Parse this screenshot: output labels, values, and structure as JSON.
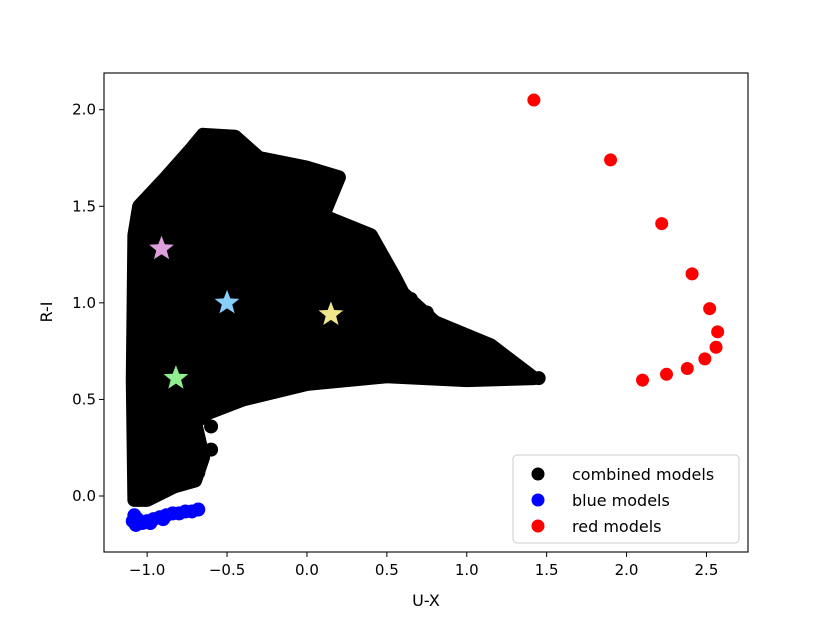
{
  "chart_data": {
    "type": "scatter",
    "title": "",
    "xlabel": "U-X",
    "ylabel": "R-I",
    "xlim": [
      -1.27,
      2.76
    ],
    "ylim": [
      -0.29,
      2.19
    ],
    "xticks": [
      -1.0,
      -0.5,
      0.0,
      0.5,
      1.0,
      1.5,
      2.0,
      2.5
    ],
    "xtick_labels": [
      "−1.0",
      "−0.5",
      "0.0",
      "0.5",
      "1.0",
      "1.5",
      "2.0",
      "2.5"
    ],
    "yticks": [
      0.0,
      0.5,
      1.0,
      1.5,
      2.0
    ],
    "ytick_labels": [
      "0.0",
      "0.5",
      "1.0",
      "1.5",
      "2.0"
    ],
    "grid": false,
    "legend_position": "lower-right",
    "series": [
      {
        "name": "combined models",
        "color": "#000000",
        "marker": "circle",
        "region_boundary": [
          [
            -1.08,
            -0.02
          ],
          [
            -1.09,
            0.6
          ],
          [
            -1.08,
            1.35
          ],
          [
            -1.05,
            1.5
          ],
          [
            -0.88,
            1.65
          ],
          [
            -0.72,
            1.8
          ],
          [
            -0.65,
            1.87
          ],
          [
            -0.45,
            1.86
          ],
          [
            -0.3,
            1.75
          ],
          [
            0.0,
            1.7
          ],
          [
            0.2,
            1.65
          ],
          [
            0.1,
            1.45
          ],
          [
            0.4,
            1.35
          ],
          [
            0.55,
            1.13
          ],
          [
            0.6,
            1.05
          ],
          [
            0.8,
            0.9
          ],
          [
            1.15,
            0.78
          ],
          [
            1.42,
            0.61
          ],
          [
            1.0,
            0.6
          ],
          [
            0.5,
            0.62
          ],
          [
            0.0,
            0.58
          ],
          [
            -0.4,
            0.5
          ],
          [
            -0.62,
            0.43
          ],
          [
            -0.7,
            0.38
          ],
          [
            -0.65,
            0.2
          ],
          [
            -0.7,
            0.08
          ],
          [
            -0.83,
            0.05
          ],
          [
            -1.0,
            -0.02
          ]
        ],
        "fringe_points": [
          [
            0.65,
            1.02
          ],
          [
            0.75,
            0.95
          ],
          [
            0.86,
            0.86
          ],
          [
            1.0,
            0.75
          ],
          [
            1.05,
            0.74
          ],
          [
            1.2,
            0.68
          ],
          [
            1.3,
            0.65
          ],
          [
            1.35,
            0.62
          ],
          [
            1.45,
            0.61
          ],
          [
            0.9,
            0.68
          ],
          [
            0.6,
            0.7
          ],
          [
            0.3,
            0.75
          ],
          [
            0.55,
            1.1
          ],
          [
            0.35,
            1.36
          ],
          [
            0.15,
            1.63
          ],
          [
            -0.05,
            1.67
          ],
          [
            -0.2,
            1.72
          ],
          [
            -0.6,
            0.36
          ],
          [
            -0.6,
            0.24
          ],
          [
            -0.68,
            0.12
          ]
        ]
      },
      {
        "name": "blue models",
        "color": "#0000ff",
        "marker": "circle",
        "points": [
          [
            -1.08,
            -0.1
          ],
          [
            -1.09,
            -0.13
          ],
          [
            -1.07,
            -0.15
          ],
          [
            -1.03,
            -0.14
          ],
          [
            -1.0,
            -0.13
          ],
          [
            -0.96,
            -0.12
          ],
          [
            -0.92,
            -0.11
          ],
          [
            -0.88,
            -0.1
          ],
          [
            -0.84,
            -0.09
          ],
          [
            -0.8,
            -0.09
          ],
          [
            -0.76,
            -0.08
          ],
          [
            -0.72,
            -0.08
          ],
          [
            -0.68,
            -0.07
          ],
          [
            -1.06,
            -0.12
          ],
          [
            -0.98,
            -0.14
          ],
          [
            -0.9,
            -0.12
          ]
        ]
      },
      {
        "name": "red models",
        "color": "#ff0000",
        "marker": "circle",
        "points": [
          [
            1.42,
            2.05
          ],
          [
            1.9,
            1.74
          ],
          [
            2.22,
            1.41
          ],
          [
            2.41,
            1.15
          ],
          [
            2.52,
            0.97
          ],
          [
            2.57,
            0.85
          ],
          [
            2.56,
            0.77
          ],
          [
            2.49,
            0.71
          ],
          [
            2.38,
            0.66
          ],
          [
            2.25,
            0.63
          ],
          [
            2.1,
            0.6
          ]
        ]
      }
    ],
    "stars": [
      {
        "x": -0.91,
        "y": 1.28,
        "color": "#dda0dd"
      },
      {
        "x": -0.5,
        "y": 1.0,
        "color": "#87cefa"
      },
      {
        "x": -0.82,
        "y": 0.61,
        "color": "#90ee90"
      },
      {
        "x": 0.15,
        "y": 0.94,
        "color": "#f0e68c"
      }
    ]
  }
}
